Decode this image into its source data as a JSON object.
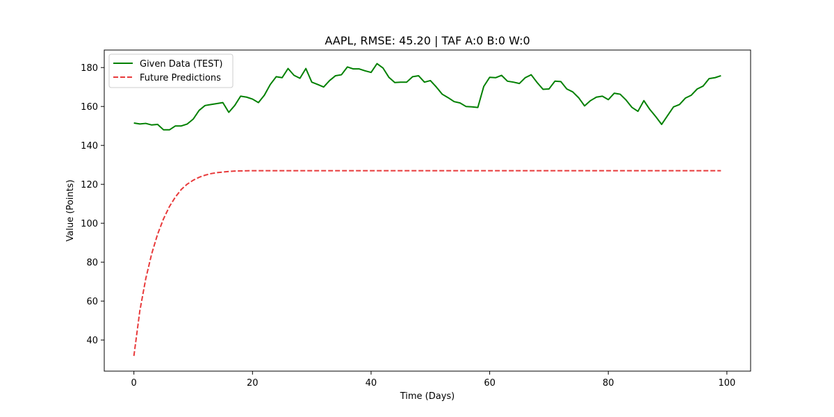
{
  "chart_data": {
    "type": "line",
    "title": "AAPL, RMSE: 45.20 | TAF A:0 B:0 W:0",
    "xlabel": "Time (Days)",
    "ylabel": "Value (Points)",
    "xlim": [
      -5,
      104
    ],
    "ylim": [
      24,
      189
    ],
    "xticks": [
      0,
      20,
      40,
      60,
      80,
      100
    ],
    "yticks": [
      40,
      60,
      80,
      100,
      120,
      140,
      160,
      180
    ],
    "grid": false,
    "legend_position": "top-left",
    "series": [
      {
        "name": "Given Data (TEST)",
        "color": "#008000",
        "style": "solid",
        "x": [
          0,
          1,
          2,
          3,
          4,
          5,
          6,
          7,
          8,
          9,
          10,
          11,
          12,
          13,
          14,
          15,
          16,
          17,
          18,
          19,
          20,
          21,
          22,
          23,
          24,
          25,
          26,
          27,
          28,
          29,
          30,
          31,
          32,
          33,
          34,
          35,
          36,
          37,
          38,
          39,
          40,
          41,
          42,
          43,
          44,
          45,
          46,
          47,
          48,
          49,
          50,
          51,
          52,
          53,
          54,
          55,
          56,
          57,
          58,
          59,
          60,
          61,
          62,
          63,
          64,
          65,
          66,
          67,
          68,
          69,
          70,
          71,
          72,
          73,
          74,
          75,
          76,
          77,
          78,
          79,
          80,
          81,
          82,
          83,
          84,
          85,
          86,
          87,
          88,
          89,
          90,
          91,
          92,
          93,
          94,
          95,
          96,
          97,
          98,
          99
        ],
        "values": [
          151.5,
          151,
          151.3,
          150.5,
          150.8,
          148,
          148,
          150,
          150,
          151,
          153.5,
          158,
          160.5,
          161,
          161.5,
          162,
          157,
          160.5,
          165.3,
          164.8,
          163.8,
          162,
          165.8,
          171.3,
          175.3,
          174.8,
          179.5,
          176,
          174.5,
          179.5,
          172.5,
          171.3,
          170,
          173.3,
          175.8,
          176.3,
          180.3,
          179.3,
          179.3,
          178.3,
          177.5,
          182,
          179.8,
          175,
          172.3,
          172.5,
          172.5,
          175.3,
          175.8,
          172.5,
          173.3,
          170,
          166.3,
          164.5,
          162.5,
          161.8,
          160,
          159.8,
          159.5,
          170.3,
          175,
          174.8,
          176,
          173,
          172.5,
          171.8,
          174.8,
          176.3,
          172.3,
          168.8,
          169,
          173,
          172.8,
          169,
          167.5,
          164.5,
          160.3,
          163,
          164.8,
          165.3,
          163.5,
          166.8,
          166.3,
          163.3,
          159.5,
          157.5,
          163,
          158.5,
          154.8,
          150.8,
          155.3,
          159.8,
          161,
          164.3,
          165.8,
          169,
          170.5,
          174.3,
          174.8,
          175.8
        ]
      },
      {
        "name": "Future Predictions",
        "color": "#e8393a",
        "style": "dashed",
        "x": [
          0,
          1,
          2,
          3,
          4,
          5,
          6,
          7,
          8,
          9,
          10,
          11,
          12,
          13,
          14,
          15,
          16,
          17,
          18,
          19,
          20,
          21,
          22,
          23,
          24,
          25,
          26,
          27,
          28,
          29,
          30,
          31,
          32,
          33,
          34,
          35,
          36,
          37,
          38,
          39,
          40,
          41,
          42,
          43,
          44,
          45,
          46,
          47,
          48,
          49,
          50,
          51,
          52,
          53,
          54,
          55,
          56,
          57,
          58,
          59,
          60,
          61,
          62,
          63,
          64,
          65,
          66,
          67,
          68,
          69,
          70,
          71,
          72,
          73,
          74,
          75,
          76,
          77,
          78,
          79,
          80,
          81,
          82,
          83,
          84,
          85,
          86,
          87,
          88,
          89,
          90,
          91,
          92,
          93,
          94,
          95,
          96,
          97,
          98,
          99
        ],
        "values": [
          31.8,
          55,
          71.5,
          84.3,
          94.4,
          102.3,
          108.6,
          113.5,
          117.4,
          120.1,
          122.1,
          123.6,
          124.7,
          125.5,
          126,
          126.3,
          126.6,
          126.8,
          126.9,
          126.95,
          127,
          127,
          127,
          127,
          127,
          127,
          127,
          127,
          127,
          127,
          127,
          127,
          127,
          127,
          127,
          127,
          127,
          127,
          127,
          127,
          127,
          127,
          127,
          127,
          127,
          127,
          127,
          127,
          127,
          127,
          127,
          127,
          127,
          127,
          127,
          127,
          127,
          127,
          127,
          127,
          127,
          127,
          127,
          127,
          127,
          127,
          127,
          127,
          127,
          127,
          127,
          127,
          127,
          127,
          127,
          127,
          127,
          127,
          127,
          127,
          127,
          127,
          127,
          127,
          127,
          127,
          127,
          127,
          127,
          127,
          127,
          127,
          127,
          127,
          127,
          127,
          127,
          127,
          127,
          127
        ]
      }
    ]
  }
}
